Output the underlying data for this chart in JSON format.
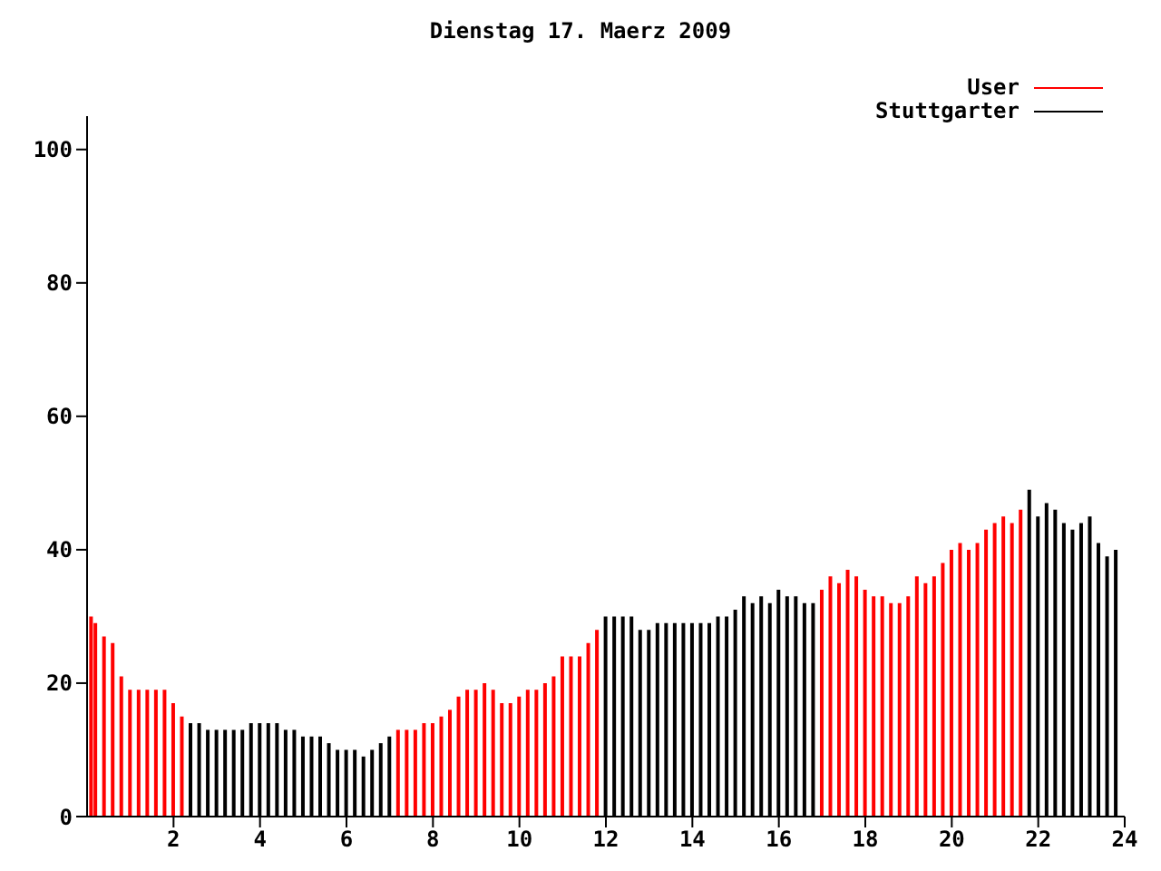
{
  "chart_data": {
    "type": "bar",
    "title": "Dienstag 17. Maerz 2009",
    "xlim": [
      0,
      24
    ],
    "xticks": [
      2,
      4,
      6,
      8,
      10,
      12,
      14,
      16,
      18,
      20,
      22,
      24
    ],
    "ylim": [
      0,
      105
    ],
    "yticks": [
      0,
      20,
      40,
      60,
      80,
      100
    ],
    "legend": "top right",
    "series": [
      {
        "name": "User",
        "color": "#ff0000",
        "x": [
          0.1,
          0.2,
          0.4,
          0.6,
          0.8,
          1.0,
          1.2,
          1.4,
          1.6,
          1.8,
          2.0,
          2.2,
          7.2,
          7.4,
          7.6,
          7.8,
          8.0,
          8.2,
          8.4,
          8.6,
          8.8,
          9.0,
          9.2,
          9.4,
          9.6,
          9.8,
          10.0,
          10.2,
          10.4,
          10.6,
          10.8,
          11.0,
          11.2,
          11.4,
          11.6,
          11.8,
          17.0,
          17.2,
          17.4,
          17.6,
          17.8,
          18.0,
          18.2,
          18.4,
          18.6,
          18.8,
          19.0,
          19.2,
          19.4,
          19.6,
          19.8,
          20.0,
          20.2,
          20.4,
          20.6,
          20.8,
          21.0,
          21.2,
          21.4,
          21.6
        ],
        "values": [
          30,
          29,
          27,
          26,
          21,
          19,
          19,
          19,
          19,
          19,
          17,
          15,
          13,
          13,
          13,
          14,
          14,
          15,
          16,
          18,
          19,
          19,
          20,
          19,
          17,
          17,
          18,
          19,
          19,
          20,
          21,
          24,
          24,
          24,
          26,
          28,
          34,
          36,
          35,
          37,
          36,
          34,
          33,
          33,
          32,
          32,
          33,
          36,
          35,
          36,
          38,
          40,
          41,
          40,
          41,
          43,
          44,
          45,
          44,
          46
        ]
      },
      {
        "name": "Stuttgarter",
        "color": "#000000",
        "x": [
          2.4,
          2.6,
          2.8,
          3.0,
          3.2,
          3.4,
          3.6,
          3.8,
          4.0,
          4.2,
          4.4,
          4.6,
          4.8,
          5.0,
          5.2,
          5.4,
          5.6,
          5.8,
          6.0,
          6.2,
          6.4,
          6.6,
          6.8,
          7.0,
          12.0,
          12.2,
          12.4,
          12.6,
          12.8,
          13.0,
          13.2,
          13.4,
          13.6,
          13.8,
          14.0,
          14.2,
          14.4,
          14.6,
          14.8,
          15.0,
          15.2,
          15.4,
          15.6,
          15.8,
          16.0,
          16.2,
          16.4,
          16.6,
          16.8,
          21.8,
          22.0,
          22.2,
          22.4,
          22.6,
          22.8,
          23.0,
          23.2,
          23.4,
          23.6,
          23.8
        ],
        "values": [
          14,
          14,
          13,
          13,
          13,
          13,
          13,
          14,
          14,
          14,
          14,
          13,
          13,
          12,
          12,
          12,
          11,
          10,
          10,
          10,
          9,
          10,
          11,
          12,
          30,
          30,
          30,
          30,
          28,
          28,
          29,
          29,
          29,
          29,
          29,
          29,
          29,
          30,
          30,
          31,
          33,
          32,
          33,
          32,
          34,
          33,
          33,
          32,
          32,
          49,
          45,
          47,
          46,
          44,
          43,
          44,
          45,
          41,
          39,
          40
        ]
      }
    ]
  }
}
